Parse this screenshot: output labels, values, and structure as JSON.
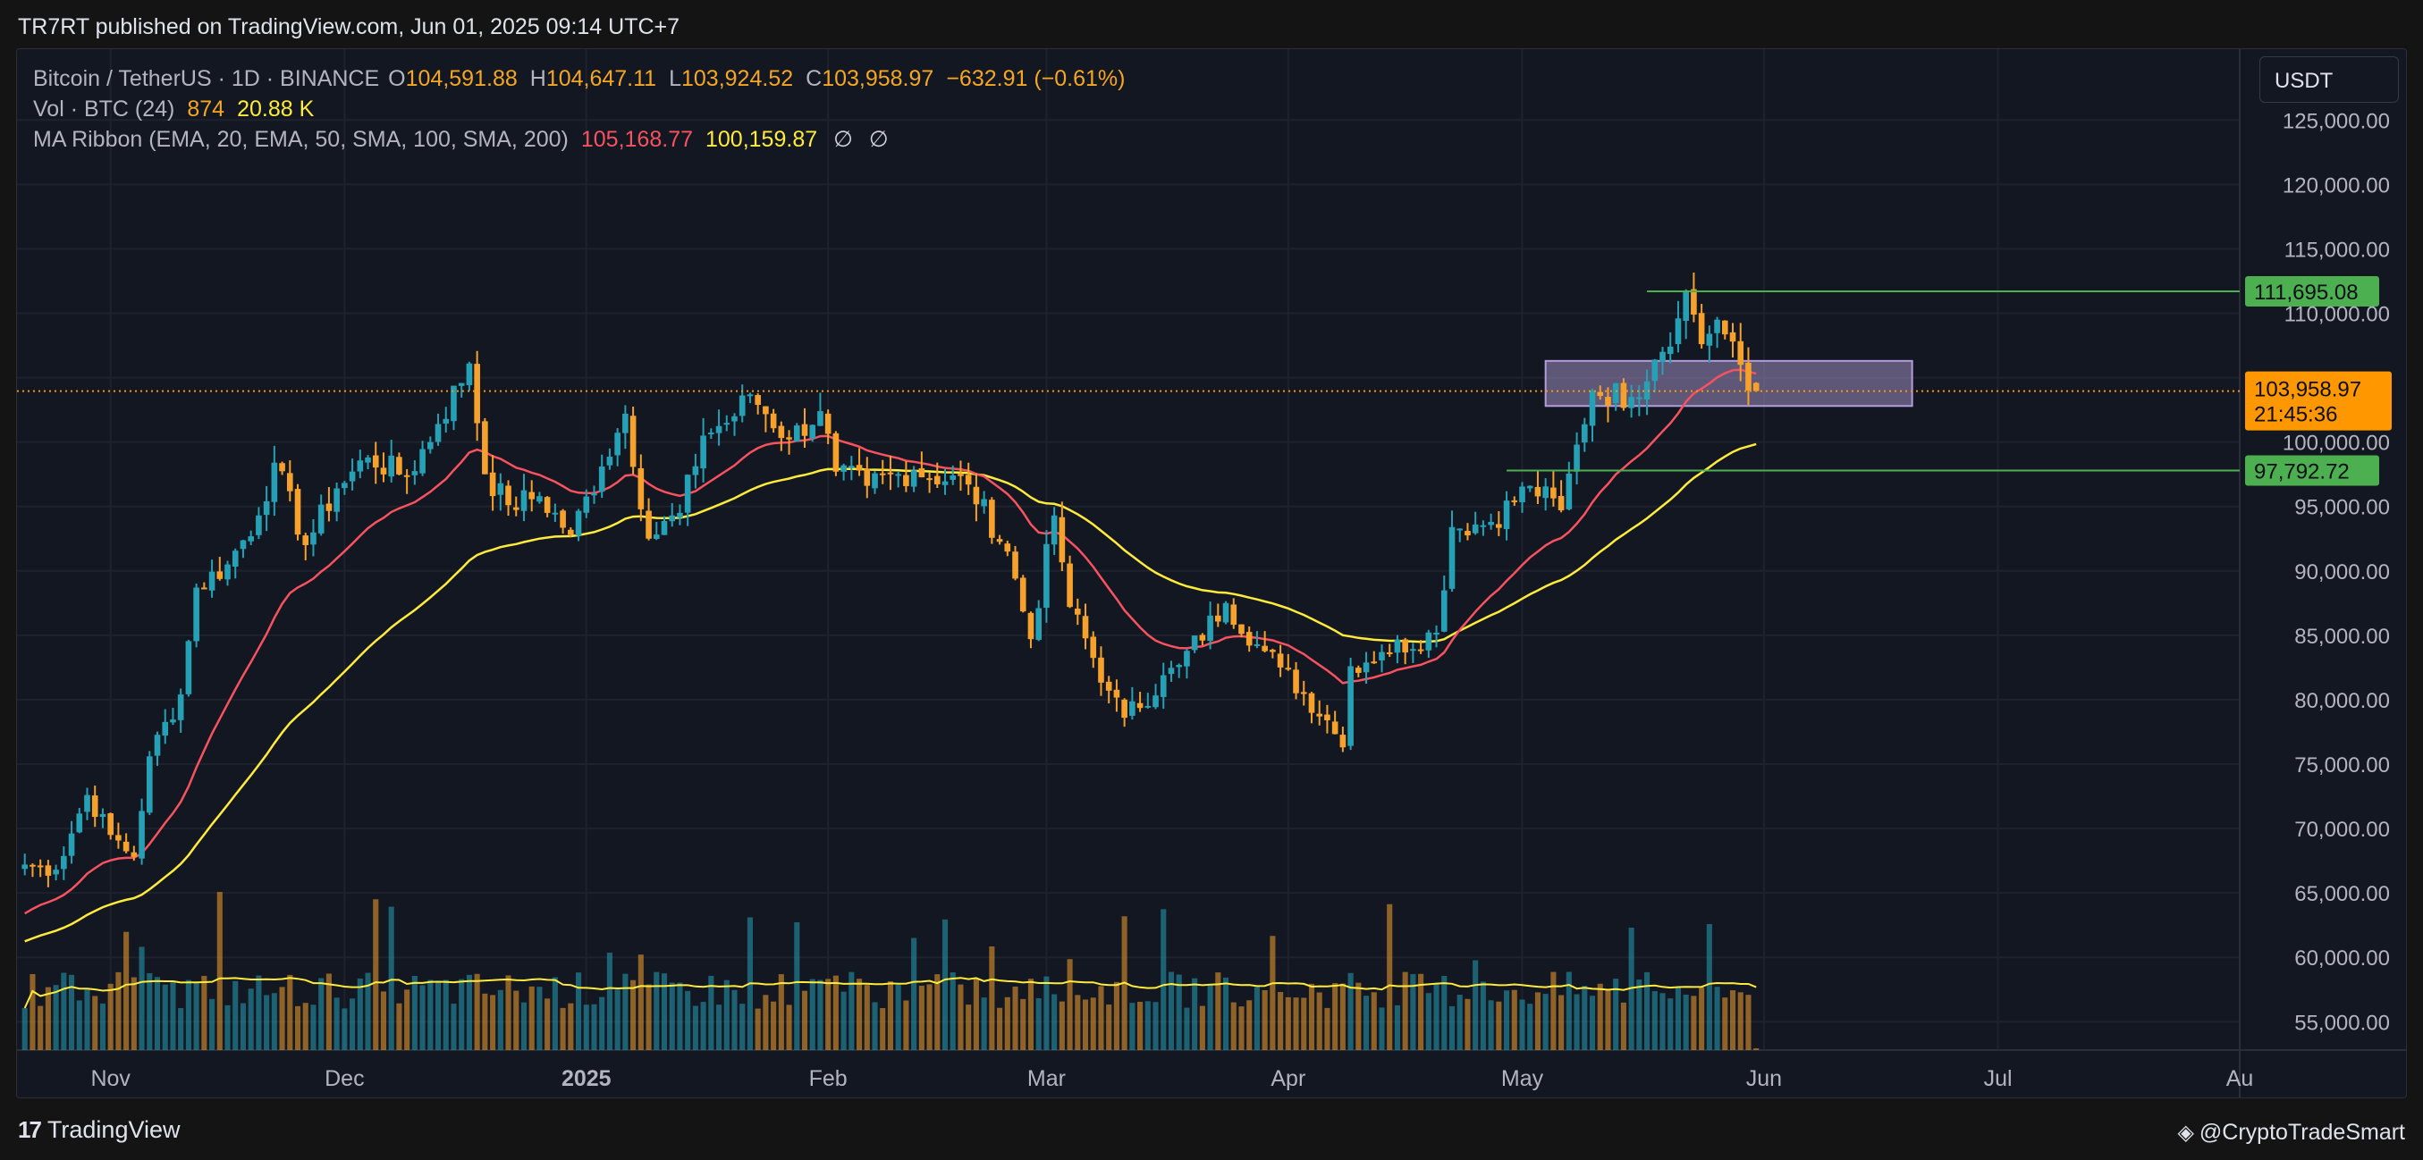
{
  "header": {
    "published": "TR7RT published on TradingView.com, Jun 01, 2025 09:14 UTC+7"
  },
  "legend": {
    "symbol": "Bitcoin / TetherUS · 1D · BINANCE",
    "o_label": "O",
    "o": "104,591.88",
    "h_label": "H",
    "h": "104,647.11",
    "l_label": "L",
    "l": "103,924.52",
    "c_label": "C",
    "c": "103,958.97",
    "change": "−632.91 (−0.61%)",
    "vol_label": "Vol · BTC (24)",
    "vol1": "874",
    "vol2": "20.88 K",
    "ma_label": "MA Ribbon (EMA, 20, EMA, 50, SMA, 100, SMA, 200)",
    "ma1": "105,168.77",
    "ma2": "100,159.87",
    "ma3": "∅",
    "ma4": "∅"
  },
  "currency_button": "USDT",
  "footer": {
    "brand": "TradingView",
    "watermark": "@CryptoTradeSmart"
  },
  "colors": {
    "background": "#131722",
    "grid": "#1e222d",
    "up": "#26a0b5",
    "down": "#f5a12c",
    "ema20": "#f7525f",
    "ema50": "#ffeb3b",
    "level_line": "#4caf50",
    "last_price": "#ff9800",
    "zone": "#9c8cc0"
  },
  "chart_data": {
    "type": "candlestick",
    "y_axis": {
      "ticks": [
        55000,
        60000,
        65000,
        70000,
        75000,
        80000,
        85000,
        90000,
        95000,
        100000,
        105000,
        110000,
        115000,
        120000,
        125000
      ],
      "tick_labels": [
        "55,000.00",
        "60,000.00",
        "65,000.00",
        "70,000.00",
        "75,000.00",
        "80,000.00",
        "85,000.00",
        "90,000.00",
        "95,000.00",
        "100,000.00",
        "105,000.00",
        "110,000.00",
        "115,000.00",
        "120,000.00",
        "125,000.00"
      ],
      "range": [
        52800,
        130500
      ]
    },
    "x_axis": {
      "range": [
        "2024-10-20",
        "2025-08-01"
      ],
      "ticks": [
        {
          "date": "2024-11-01",
          "label": "Nov",
          "bold": false
        },
        {
          "date": "2024-12-01",
          "label": "Dec",
          "bold": false
        },
        {
          "date": "2025-01-01",
          "label": "2025",
          "bold": true
        },
        {
          "date": "2025-02-01",
          "label": "Feb",
          "bold": false
        },
        {
          "date": "2025-03-01",
          "label": "Mar",
          "bold": false
        },
        {
          "date": "2025-04-01",
          "label": "Apr",
          "bold": false
        },
        {
          "date": "2025-05-01",
          "label": "May",
          "bold": false
        },
        {
          "date": "2025-06-01",
          "label": "Jun",
          "bold": false
        },
        {
          "date": "2025-07-01",
          "label": "Jul",
          "bold": false
        },
        {
          "date": "2025-08-01",
          "label": "Au",
          "bold": false
        }
      ]
    },
    "first_date": "2024-10-21",
    "close_anchors": [
      [
        "2024-10-21",
        67200
      ],
      [
        "2024-10-25",
        66800
      ],
      [
        "2024-10-29",
        72600
      ],
      [
        "2024-11-01",
        69500
      ],
      [
        "2024-11-04",
        67800
      ],
      [
        "2024-11-06",
        75600
      ],
      [
        "2024-11-10",
        80400
      ],
      [
        "2024-11-12",
        88700
      ],
      [
        "2024-11-16",
        90500
      ],
      [
        "2024-11-20",
        94300
      ],
      [
        "2024-11-22",
        98400
      ],
      [
        "2024-11-26",
        92000
      ],
      [
        "2024-11-30",
        96400
      ],
      [
        "2024-12-04",
        98800
      ],
      [
        "2024-12-09",
        97300
      ],
      [
        "2024-12-13",
        101400
      ],
      [
        "2024-12-17",
        106100
      ],
      [
        "2024-12-19",
        97500
      ],
      [
        "2024-12-22",
        95100
      ],
      [
        "2024-12-26",
        95800
      ],
      [
        "2024-12-30",
        92800
      ],
      [
        "2025-01-03",
        98100
      ],
      [
        "2025-01-06",
        102200
      ],
      [
        "2025-01-09",
        92500
      ],
      [
        "2025-01-13",
        94500
      ],
      [
        "2025-01-16",
        100500
      ],
      [
        "2025-01-20",
        102000
      ],
      [
        "2025-01-22",
        103700
      ],
      [
        "2025-01-27",
        100200
      ],
      [
        "2025-01-31",
        102400
      ],
      [
        "2025-02-02",
        97700
      ],
      [
        "2025-02-06",
        96600
      ],
      [
        "2025-02-12",
        97800
      ],
      [
        "2025-02-19",
        96700
      ],
      [
        "2025-02-24",
        91500
      ],
      [
        "2025-02-27",
        84700
      ],
      [
        "2025-03-02",
        94300
      ],
      [
        "2025-03-04",
        87200
      ],
      [
        "2025-03-09",
        80700
      ],
      [
        "2025-03-11",
        78600
      ],
      [
        "2025-03-18",
        82700
      ],
      [
        "2025-03-24",
        87500
      ],
      [
        "2025-03-28",
        84300
      ],
      [
        "2025-03-31",
        82500
      ],
      [
        "2025-04-06",
        78400
      ],
      [
        "2025-04-08",
        76300
      ],
      [
        "2025-04-09",
        82600
      ],
      [
        "2025-04-13",
        83700
      ],
      [
        "2025-04-20",
        85200
      ],
      [
        "2025-04-22",
        93400
      ],
      [
        "2025-04-27",
        93800
      ],
      [
        "2025-05-02",
        96600
      ],
      [
        "2025-05-06",
        94700
      ],
      [
        "2025-05-08",
        99800
      ],
      [
        "2025-05-10",
        104000
      ],
      [
        "2025-05-15",
        103500
      ],
      [
        "2025-05-18",
        106400
      ],
      [
        "2025-05-21",
        109600
      ],
      [
        "2025-05-22",
        111700
      ],
      [
        "2025-05-24",
        107600
      ],
      [
        "2025-05-26",
        109500
      ],
      [
        "2025-05-28",
        107800
      ],
      [
        "2025-05-30",
        104000
      ],
      [
        "2025-05-31",
        103959
      ]
    ],
    "ema20_end": 105168.77,
    "ema50_end": 100159.87,
    "levels": [
      {
        "label": "111,695.08",
        "value": 111695.08,
        "start": "2025-05-17"
      },
      {
        "label": "97,792.72",
        "value": 97792.72,
        "start": "2025-04-29"
      }
    ],
    "last_price": {
      "label": "103,958.97",
      "countdown": "21:45:36",
      "value": 103958.97
    },
    "zone": {
      "start": "2025-05-04",
      "end": "2025-06-20",
      "high": 106300,
      "low": 102800
    },
    "volume": {
      "last_bar": 874,
      "ma": 20880
    }
  }
}
